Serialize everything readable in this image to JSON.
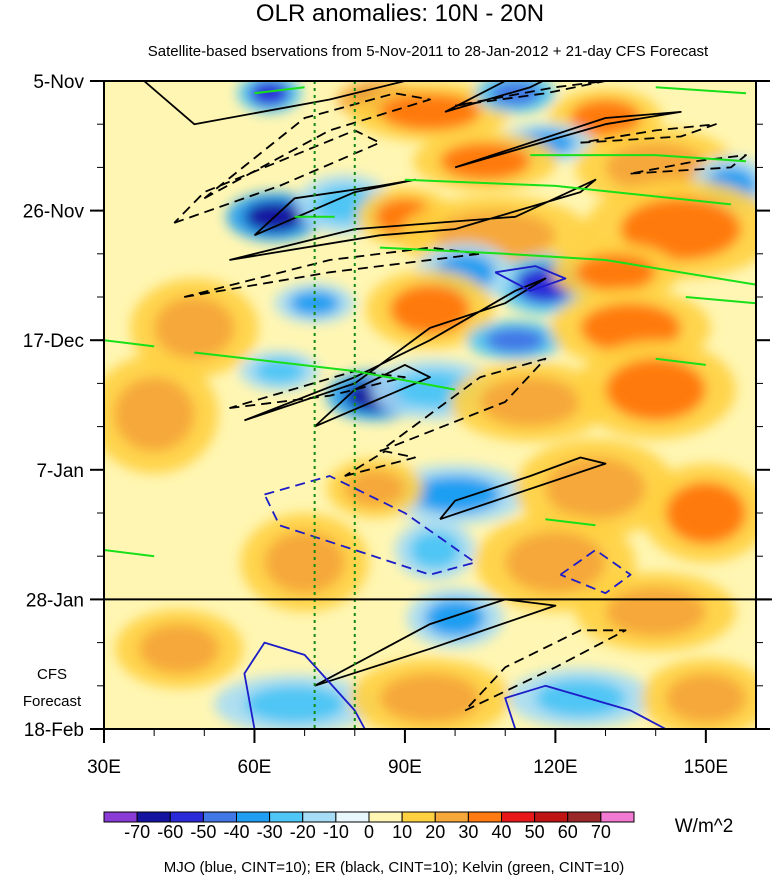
{
  "chart_data": {
    "type": "heatmap",
    "title": "OLR anomalies: 10N - 20N",
    "subtitle": "Satellite-based bservations from 5-Nov-2011 to 28-Jan-2012 + 21-day CFS Forecast",
    "x_tick_labels": [
      "30E",
      "60E",
      "90E",
      "120E",
      "150E"
    ],
    "x_ticks": [
      30,
      60,
      90,
      120,
      150
    ],
    "xlim": [
      30,
      160
    ],
    "y_tick_labels": [
      "5-Nov",
      "26-Nov",
      "17-Dec",
      "7-Jan",
      "28-Jan",
      "18-Feb"
    ],
    "y_ticks": [
      0,
      21,
      42,
      63,
      84,
      105
    ],
    "ylim_days": [
      0,
      105
    ],
    "forecast_start_day": 84,
    "forecast_label_1": "CFS",
    "forecast_label_2": "Forecast",
    "reference_lon_lines": [
      72,
      80
    ],
    "colorbar_labels": [
      "-70",
      "-60",
      "-50",
      "-40",
      "-30",
      "-20",
      "-10",
      "0",
      "10",
      "20",
      "30",
      "40",
      "50",
      "60",
      "70"
    ],
    "colorbar_levels": [
      -70,
      -60,
      -50,
      -40,
      -30,
      -20,
      -10,
      0,
      10,
      20,
      30,
      40,
      50,
      60,
      70
    ],
    "colorbar_colors": [
      "#8a3bd6",
      "#1414a0",
      "#2a2ad8",
      "#4277e6",
      "#1f9ef2",
      "#4fc6f5",
      "#a6dcf6",
      "#e7f7fb",
      "#fff6b3",
      "#ffd040",
      "#f6a83a",
      "#ff7a10",
      "#e81818",
      "#be1414",
      "#9a2828",
      "#f27ad2"
    ],
    "units": "W/m^2",
    "legend": "MJO (blue, CINT=10); ER (black, CINT=10); Kelvin (green, CINT=10)",
    "series_colors": {
      "mjo": "#1c1cc8",
      "er": "#000000",
      "kelvin": "#18e018",
      "reference": "#138a13"
    },
    "blobs": [
      {
        "lon": 63,
        "day": 2,
        "v": -60,
        "rlon": 4,
        "rday": 2
      },
      {
        "lon": 86,
        "day": 3,
        "v": 50,
        "rlon": 6,
        "rday": 2
      },
      {
        "lon": 95,
        "day": 5,
        "v": 30,
        "rlon": 10,
        "rday": 3
      },
      {
        "lon": 112,
        "day": 2,
        "v": -50,
        "rlon": 5,
        "rday": 2
      },
      {
        "lon": 130,
        "day": 6,
        "v": 30,
        "rlon": 7,
        "rday": 3
      },
      {
        "lon": 118,
        "day": 10,
        "v": -40,
        "rlon": 6,
        "rday": 2
      },
      {
        "lon": 106,
        "day": 13,
        "v": 30,
        "rlon": 9,
        "rday": 3
      },
      {
        "lon": 140,
        "day": 14,
        "v": 20,
        "rlon": 10,
        "rday": 4
      },
      {
        "lon": 155,
        "day": 17,
        "v": -40,
        "rlon": 5,
        "rday": 3
      },
      {
        "lon": 64,
        "day": 22,
        "v": -70,
        "rlon": 6,
        "rday": 2.5
      },
      {
        "lon": 78,
        "day": 20,
        "v": -30,
        "rlon": 6,
        "rday": 3
      },
      {
        "lon": 90,
        "day": 22,
        "v": 30,
        "rlon": 6,
        "rday": 3
      },
      {
        "lon": 108,
        "day": 25,
        "v": 20,
        "rlon": 12,
        "rday": 4
      },
      {
        "lon": 145,
        "day": 24,
        "v": 30,
        "rlon": 12,
        "rday": 5
      },
      {
        "lon": 118,
        "day": 33,
        "v": -60,
        "rlon": 6,
        "rday": 3
      },
      {
        "lon": 102,
        "day": 31,
        "v": -40,
        "rlon": 6,
        "rday": 3
      },
      {
        "lon": 132,
        "day": 31,
        "v": 30,
        "rlon": 8,
        "rday": 3
      },
      {
        "lon": 72,
        "day": 36,
        "v": -40,
        "rlon": 5,
        "rday": 2
      },
      {
        "lon": 95,
        "day": 37,
        "v": 30,
        "rlon": 8,
        "rday": 4
      },
      {
        "lon": 112,
        "day": 42,
        "v": -50,
        "rlon": 6,
        "rday": 2
      },
      {
        "lon": 135,
        "day": 40,
        "v": 30,
        "rlon": 10,
        "rday": 4
      },
      {
        "lon": 48,
        "day": 40,
        "v": 20,
        "rlon": 8,
        "rday": 5
      },
      {
        "lon": 84,
        "day": 51,
        "v": -70,
        "rlon": 6,
        "rday": 2.5
      },
      {
        "lon": 96,
        "day": 50,
        "v": -30,
        "rlon": 8,
        "rday": 3
      },
      {
        "lon": 65,
        "day": 47,
        "v": -30,
        "rlon": 5,
        "rday": 2
      },
      {
        "lon": 115,
        "day": 52,
        "v": 20,
        "rlon": 10,
        "rday": 4
      },
      {
        "lon": 140,
        "day": 50,
        "v": 30,
        "rlon": 10,
        "rday": 5
      },
      {
        "lon": 40,
        "day": 54,
        "v": 20,
        "rlon": 8,
        "rday": 6
      },
      {
        "lon": 100,
        "day": 67,
        "v": -40,
        "rlon": 9,
        "rday": 3
      },
      {
        "lon": 84,
        "day": 66,
        "v": 20,
        "rlon": 6,
        "rday": 3
      },
      {
        "lon": 128,
        "day": 66,
        "v": 20,
        "rlon": 10,
        "rday": 5
      },
      {
        "lon": 150,
        "day": 70,
        "v": 30,
        "rlon": 8,
        "rday": 5
      },
      {
        "lon": 96,
        "day": 76,
        "v": -30,
        "rlon": 5,
        "rday": 3
      },
      {
        "lon": 70,
        "day": 78,
        "v": 20,
        "rlon": 8,
        "rday": 5
      },
      {
        "lon": 120,
        "day": 78,
        "v": 20,
        "rlon": 10,
        "rday": 5
      },
      {
        "lon": 100,
        "day": 87,
        "v": -40,
        "rlon": 6,
        "rday": 3
      },
      {
        "lon": 140,
        "day": 86,
        "v": 20,
        "rlon": 10,
        "rday": 4
      },
      {
        "lon": 45,
        "day": 92,
        "v": 20,
        "rlon": 8,
        "rday": 4
      },
      {
        "lon": 68,
        "day": 101,
        "v": -30,
        "rlon": 10,
        "rday": 3
      },
      {
        "lon": 95,
        "day": 100,
        "v": 20,
        "rlon": 10,
        "rday": 4
      },
      {
        "lon": 125,
        "day": 100,
        "v": -30,
        "rlon": 9,
        "rday": 3
      },
      {
        "lon": 150,
        "day": 100,
        "v": 20,
        "rlon": 8,
        "rday": 4
      }
    ],
    "contours": [
      {
        "kind": "er",
        "dashed": false,
        "points": [
          [
            38,
            0
          ],
          [
            48,
            7
          ],
          [
            75,
            3
          ],
          [
            90,
            0
          ],
          [
            80,
            -2
          ],
          [
            60,
            -1
          ],
          [
            38,
            0
          ]
        ]
      },
      {
        "kind": "er",
        "dashed": false,
        "points": [
          [
            98,
            5
          ],
          [
            115,
            1
          ],
          [
            120,
            -1
          ],
          [
            110,
            0
          ],
          [
            98,
            5
          ]
        ]
      },
      {
        "kind": "er",
        "dashed": false,
        "points": [
          [
            100,
            14
          ],
          [
            130,
            7
          ],
          [
            145,
            5
          ],
          [
            130,
            6
          ],
          [
            100,
            14
          ]
        ]
      },
      {
        "kind": "er",
        "dashed": false,
        "points": [
          [
            60,
            25
          ],
          [
            80,
            18
          ],
          [
            92,
            16
          ],
          [
            85,
            17
          ],
          [
            68,
            19
          ],
          [
            60,
            25
          ]
        ]
      },
      {
        "kind": "er",
        "dashed": false,
        "points": [
          [
            55,
            29
          ],
          [
            80,
            24
          ],
          [
            112,
            22
          ],
          [
            128,
            16
          ],
          [
            125,
            18
          ],
          [
            100,
            24
          ],
          [
            85,
            25
          ],
          [
            55,
            29
          ]
        ]
      },
      {
        "kind": "er",
        "dashed": false,
        "points": [
          [
            58,
            55
          ],
          [
            80,
            49
          ],
          [
            95,
            40
          ],
          [
            110,
            36
          ],
          [
            118,
            32
          ],
          [
            112,
            34
          ],
          [
            95,
            42
          ],
          [
            80,
            48
          ],
          [
            58,
            55
          ]
        ]
      },
      {
        "kind": "er",
        "dashed": false,
        "points": [
          [
            72,
            56
          ],
          [
            95,
            48
          ],
          [
            90,
            46
          ],
          [
            80,
            50
          ],
          [
            72,
            56
          ]
        ]
      },
      {
        "kind": "er",
        "dashed": false,
        "points": [
          [
            97,
            71
          ],
          [
            130,
            62
          ],
          [
            125,
            61
          ],
          [
            115,
            64
          ],
          [
            100,
            68
          ],
          [
            97,
            71
          ]
        ]
      },
      {
        "kind": "er",
        "dashed": false,
        "points": [
          [
            72,
            98
          ],
          [
            95,
            92
          ],
          [
            120,
            85
          ],
          [
            110,
            84
          ],
          [
            95,
            88
          ],
          [
            72,
            98
          ]
        ]
      },
      {
        "kind": "er",
        "dashed": true,
        "points": [
          [
            44,
            23
          ],
          [
            65,
            17
          ],
          [
            85,
            10
          ],
          [
            80,
            8
          ],
          [
            68,
            12
          ],
          [
            50,
            18
          ],
          [
            44,
            23
          ]
        ]
      },
      {
        "kind": "er",
        "dashed": true,
        "points": [
          [
            50,
            19
          ],
          [
            75,
            8
          ],
          [
            95,
            3
          ],
          [
            88,
            2
          ],
          [
            70,
            6
          ],
          [
            50,
            19
          ]
        ]
      },
      {
        "kind": "er",
        "dashed": true,
        "points": [
          [
            100,
            4
          ],
          [
            118,
            2
          ],
          [
            130,
            0
          ],
          [
            120,
            1
          ],
          [
            100,
            4
          ]
        ]
      },
      {
        "kind": "er",
        "dashed": true,
        "points": [
          [
            125,
            10
          ],
          [
            145,
            9
          ],
          [
            152,
            7
          ],
          [
            140,
            8
          ],
          [
            125,
            10
          ]
        ]
      },
      {
        "kind": "er",
        "dashed": true,
        "points": [
          [
            135,
            15
          ],
          [
            155,
            14
          ],
          [
            158,
            12
          ],
          [
            148,
            13
          ],
          [
            135,
            15
          ]
        ]
      },
      {
        "kind": "er",
        "dashed": true,
        "points": [
          [
            46,
            35
          ],
          [
            75,
            31
          ],
          [
            105,
            28
          ],
          [
            95,
            27
          ],
          [
            75,
            29
          ],
          [
            46,
            35
          ]
        ]
      },
      {
        "kind": "er",
        "dashed": true,
        "points": [
          [
            55,
            53
          ],
          [
            75,
            51
          ],
          [
            90,
            48
          ],
          [
            80,
            47
          ],
          [
            55,
            53
          ]
        ]
      },
      {
        "kind": "er",
        "dashed": true,
        "points": [
          [
            85,
            60
          ],
          [
            110,
            52
          ],
          [
            118,
            45
          ],
          [
            105,
            48
          ],
          [
            85,
            60
          ]
        ]
      },
      {
        "kind": "er",
        "dashed": true,
        "points": [
          [
            78,
            64
          ],
          [
            92,
            61
          ],
          [
            86,
            60
          ],
          [
            78,
            64
          ]
        ]
      },
      {
        "kind": "er",
        "dashed": true,
        "points": [
          [
            102,
            102
          ],
          [
            120,
            95
          ],
          [
            134,
            89
          ],
          [
            125,
            89
          ],
          [
            110,
            95
          ],
          [
            102,
            102
          ]
        ]
      },
      {
        "kind": "mjo",
        "dashed": true,
        "points": [
          [
            62,
            67
          ],
          [
            75,
            64
          ],
          [
            90,
            70
          ],
          [
            104,
            78
          ],
          [
            95,
            80
          ],
          [
            80,
            76
          ],
          [
            65,
            72
          ],
          [
            62,
            67
          ]
        ]
      },
      {
        "kind": "mjo",
        "dashed": true,
        "points": [
          [
            121,
            80
          ],
          [
            128,
            76
          ],
          [
            135,
            80
          ],
          [
            130,
            83
          ],
          [
            121,
            80
          ]
        ]
      },
      {
        "kind": "mjo",
        "dashed": false,
        "points": [
          [
            60,
            105
          ],
          [
            58,
            96
          ],
          [
            62,
            91
          ],
          [
            70,
            93
          ],
          [
            80,
            102
          ],
          [
            82,
            105
          ]
        ]
      },
      {
        "kind": "mjo",
        "dashed": false,
        "points": [
          [
            112,
            105
          ],
          [
            110,
            100
          ],
          [
            118,
            98
          ],
          [
            135,
            102
          ],
          [
            142,
            105
          ]
        ]
      },
      {
        "kind": "mjo",
        "dashed": false,
        "points": [
          [
            108,
            31
          ],
          [
            116,
            30
          ],
          [
            122,
            32
          ],
          [
            115,
            34
          ],
          [
            108,
            31
          ]
        ]
      },
      {
        "kind": "kelvin",
        "dashed": false,
        "points": [
          [
            90,
            16
          ],
          [
            120,
            17
          ],
          [
            155,
            20
          ]
        ]
      },
      {
        "kind": "kelvin",
        "dashed": false,
        "points": [
          [
            115,
            12
          ],
          [
            140,
            12
          ],
          [
            158,
            13
          ]
        ]
      },
      {
        "kind": "kelvin",
        "dashed": false,
        "points": [
          [
            60,
            2
          ],
          [
            70,
            1
          ]
        ]
      },
      {
        "kind": "kelvin",
        "dashed": false,
        "points": [
          [
            140,
            1
          ],
          [
            158,
            2
          ]
        ]
      },
      {
        "kind": "kelvin",
        "dashed": false,
        "points": [
          [
            68,
            22
          ],
          [
            76,
            22
          ]
        ]
      },
      {
        "kind": "kelvin",
        "dashed": false,
        "points": [
          [
            85,
            27
          ],
          [
            110,
            28
          ],
          [
            130,
            29
          ],
          [
            160,
            33
          ]
        ]
      },
      {
        "kind": "kelvin",
        "dashed": false,
        "points": [
          [
            30,
            42
          ],
          [
            40,
            43
          ]
        ]
      },
      {
        "kind": "kelvin",
        "dashed": false,
        "points": [
          [
            48,
            44
          ],
          [
            80,
            47
          ],
          [
            100,
            50
          ]
        ]
      },
      {
        "kind": "kelvin",
        "dashed": false,
        "points": [
          [
            140,
            45
          ],
          [
            150,
            46
          ]
        ]
      },
      {
        "kind": "kelvin",
        "dashed": false,
        "points": [
          [
            30,
            76
          ],
          [
            40,
            77
          ]
        ]
      },
      {
        "kind": "kelvin",
        "dashed": false,
        "points": [
          [
            118,
            71
          ],
          [
            128,
            72
          ]
        ]
      },
      {
        "kind": "kelvin",
        "dashed": false,
        "points": [
          [
            146,
            35
          ],
          [
            160,
            36
          ]
        ]
      }
    ]
  }
}
